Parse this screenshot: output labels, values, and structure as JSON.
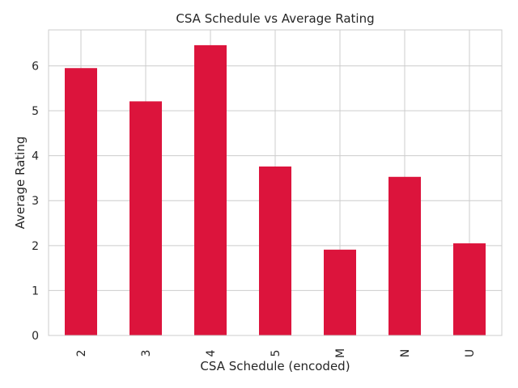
{
  "chart_data": {
    "type": "bar",
    "title": "CSA Schedule vs Average Rating",
    "xlabel": "CSA Schedule (encoded)",
    "ylabel": "Average Rating",
    "categories": [
      "2",
      "3",
      "4",
      "5",
      "M",
      "N",
      "U"
    ],
    "values": [
      5.95,
      5.21,
      6.46,
      3.76,
      1.91,
      3.53,
      2.05
    ],
    "ylim": [
      0,
      6.8
    ],
    "yticks": [
      0,
      1,
      2,
      3,
      4,
      5,
      6
    ],
    "grid": true,
    "bar_color": "#dc143c",
    "grid_color": "#cccccc"
  }
}
